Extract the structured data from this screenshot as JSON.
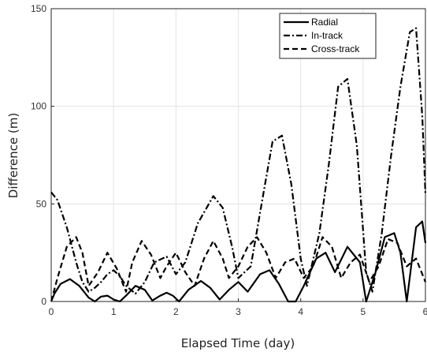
{
  "chart_data": {
    "type": "line",
    "xlabel": "Elapsed Time (day)",
    "ylabel": "Difference (m)",
    "xlim": [
      0,
      6
    ],
    "ylim": [
      0,
      150
    ],
    "x_ticks": [
      "0",
      "1",
      "2",
      "3",
      "4",
      "5",
      "6"
    ],
    "y_ticks": [
      "0",
      "50",
      "100",
      "150"
    ],
    "grid": true,
    "legend_position": "top-right",
    "series": [
      {
        "name": "Radial",
        "style": "solid",
        "x": [
          0,
          0.05,
          0.15,
          0.3,
          0.45,
          0.6,
          0.7,
          0.8,
          0.9,
          1.0,
          1.1,
          1.2,
          1.35,
          1.5,
          1.62,
          1.75,
          1.85,
          1.95,
          2.05,
          2.2,
          2.4,
          2.55,
          2.7,
          2.85,
          3.0,
          3.15,
          3.35,
          3.5,
          3.65,
          3.8,
          3.92,
          4.05,
          4.25,
          4.4,
          4.55,
          4.75,
          4.95,
          5.05,
          5.2,
          5.35,
          5.5,
          5.6,
          5.7,
          5.85,
          5.95,
          6.0
        ],
        "y": [
          0,
          4,
          9,
          11.5,
          8,
          2,
          0,
          2.5,
          3,
          1,
          0,
          3,
          8,
          6,
          0.5,
          3,
          4.5,
          3,
          0,
          6,
          10.5,
          7,
          1,
          6,
          10,
          5,
          14,
          16,
          9,
          0,
          0,
          8,
          22,
          25,
          15,
          28,
          20,
          0,
          15,
          33,
          35,
          25,
          0,
          38,
          41,
          30
        ]
      },
      {
        "name": "In-track",
        "style": "dashdot",
        "x": [
          0,
          0.1,
          0.25,
          0.4,
          0.5,
          0.6,
          0.7,
          0.8,
          0.9,
          1.0,
          1.1,
          1.2,
          1.35,
          1.5,
          1.65,
          1.85,
          2.0,
          2.15,
          2.35,
          2.6,
          2.75,
          2.9,
          3.0,
          3.2,
          3.4,
          3.55,
          3.7,
          3.85,
          4.0,
          4.1,
          4.3,
          4.45,
          4.6,
          4.75,
          4.9,
          5.05,
          5.15,
          5.3,
          5.45,
          5.6,
          5.75,
          5.85,
          5.95,
          6.0
        ],
        "y": [
          56,
          52,
          38,
          20,
          10,
          5,
          7,
          10,
          14,
          16,
          13,
          8,
          4,
          10,
          20,
          23,
          14,
          20,
          40,
          54,
          48,
          28,
          12,
          18,
          55,
          82,
          85,
          60,
          22,
          8,
          35,
          70,
          110,
          114,
          80,
          15,
          5,
          35,
          75,
          110,
          138,
          140,
          95,
          55
        ]
      },
      {
        "name": "Cross-track",
        "style": "dashed",
        "x": [
          0,
          0.1,
          0.25,
          0.4,
          0.5,
          0.6,
          0.75,
          0.9,
          1.05,
          1.2,
          1.3,
          1.45,
          1.6,
          1.75,
          1.85,
          2.0,
          2.15,
          2.3,
          2.45,
          2.6,
          2.75,
          2.85,
          3.0,
          3.15,
          3.3,
          3.45,
          3.6,
          3.75,
          3.9,
          4.05,
          4.2,
          4.35,
          4.5,
          4.65,
          4.8,
          4.95,
          5.1,
          5.25,
          5.4,
          5.55,
          5.7,
          5.85,
          6.0
        ],
        "y": [
          0,
          12,
          28,
          33,
          25,
          8,
          15,
          25,
          17,
          5,
          20,
          31,
          24,
          12,
          18,
          25,
          15,
          8,
          22,
          31,
          22,
          12,
          18,
          28,
          33,
          25,
          12,
          20,
          22,
          12,
          18,
          33,
          28,
          12,
          20,
          24,
          10,
          18,
          32,
          30,
          18,
          22,
          10
        ]
      }
    ]
  }
}
